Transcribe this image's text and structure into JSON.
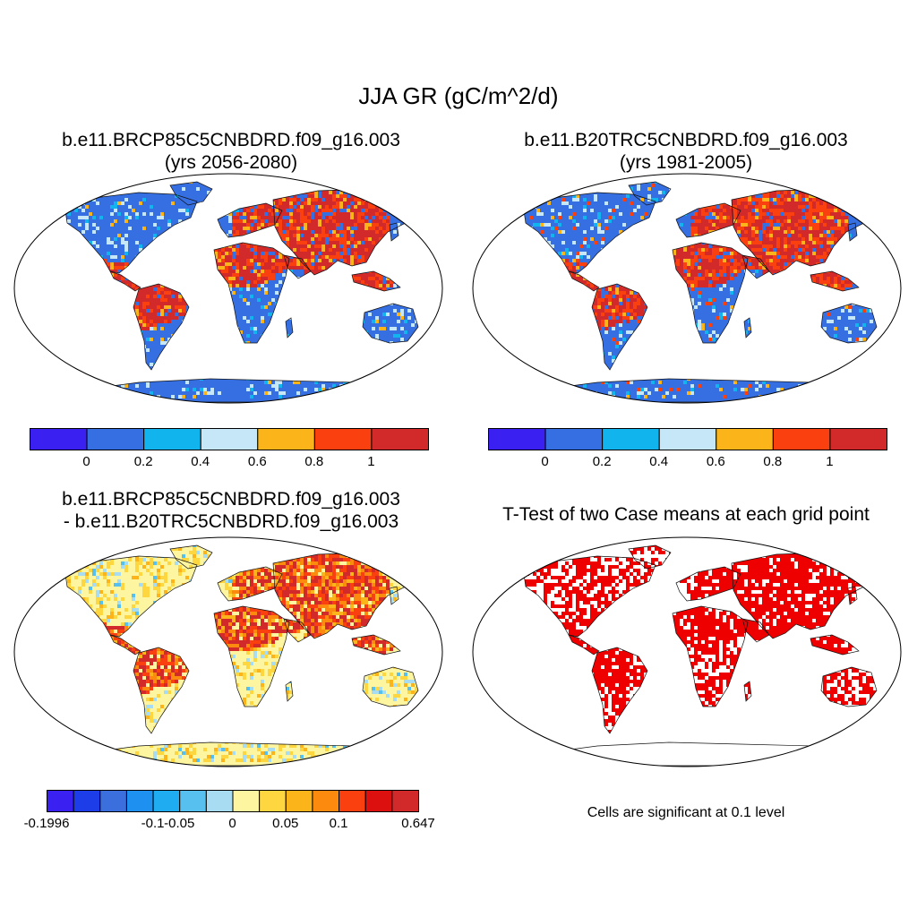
{
  "figure": {
    "main_title": "JJA GR (gC/m^2/d)"
  },
  "panels": {
    "case1": {
      "title_line1": "b.e11.BRCP85C5CNBDRD.f09_g16.003",
      "title_line2": "(yrs 2056-2080)"
    },
    "case2": {
      "title_line1": "b.e11.B20TRC5CNBDRD.f09_g16.003",
      "title_line2": "(yrs 1981-2005)"
    },
    "diff": {
      "title_line1": "b.e11.BRCP85C5CNBDRD.f09_g16.003",
      "title_line2": "- b.e11.B20TRC5CNBDRD.f09_g16.003"
    },
    "ttest": {
      "title": "T-Test of two Case means at each grid point",
      "note": "Cells are significant at 0.1 level"
    }
  },
  "colorbars": {
    "main": {
      "colors": [
        "#3b20f2",
        "#356fe1",
        "#12b4ee",
        "#c6e7f7",
        "#fbb41a",
        "#f9400e",
        "#d22a2a"
      ],
      "tick_labels": [
        "0",
        "0.2",
        "0.4",
        "0.6",
        "0.8",
        "1"
      ]
    },
    "diff": {
      "colors": [
        "#3b20f2",
        "#1c3de8",
        "#3b6fdd",
        "#1e90f0",
        "#20acf0",
        "#58c0ef",
        "#a8dcf2",
        "#fdf5a0",
        "#fed640",
        "#fbb41a",
        "#fb8a0e",
        "#f9400e",
        "#dd1010",
        "#d22a2a"
      ],
      "tick_labels": [
        "-0.1996",
        "-0.1",
        "-0.05",
        "0",
        "0.05",
        "0.1",
        "0.647"
      ]
    }
  },
  "colors": {
    "ocean": "#ffffff",
    "land_low": "#356fe1",
    "land_diff_base": "#fdf5a0",
    "significant": "#ee0000"
  }
}
